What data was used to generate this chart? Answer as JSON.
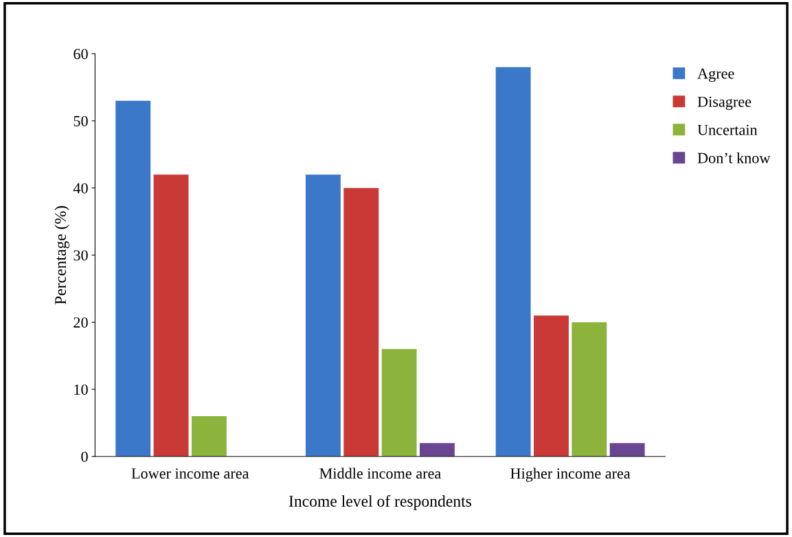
{
  "chart_data": {
    "type": "bar",
    "xlabel": "Income level of respondents",
    "ylabel": "Percentage (%)",
    "categories": [
      "Lower income area",
      "Middle income area",
      "Higher income area"
    ],
    "series": [
      {
        "name": "Agree",
        "color": "#3b78c9",
        "values": [
          53,
          42,
          58
        ]
      },
      {
        "name": "Disagree",
        "color": "#c93a36",
        "values": [
          42,
          40,
          21
        ]
      },
      {
        "name": "Uncertain",
        "color": "#8cb43c",
        "values": [
          6,
          16,
          20
        ]
      },
      {
        "name": "Don’t know",
        "color": "#6a4592",
        "values": [
          0,
          2,
          2
        ]
      }
    ],
    "ylim": [
      0,
      60
    ],
    "yticks": [
      0,
      10,
      20,
      30,
      40,
      50,
      60
    ],
    "grid": false,
    "legend": "top right"
  }
}
